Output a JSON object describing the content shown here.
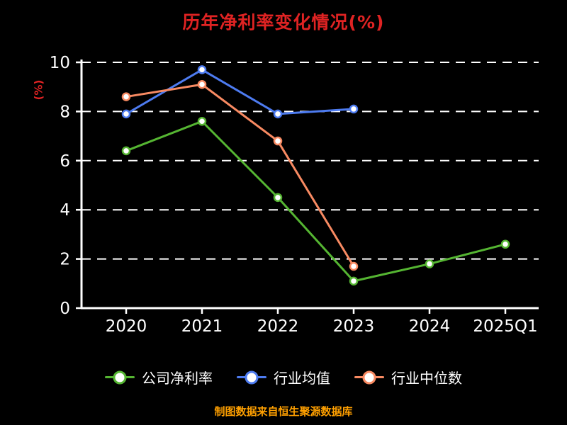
{
  "chart_data": {
    "type": "line",
    "title": "历年净利率变化情况(%)",
    "ylabel": "(%)",
    "footer": "制图数据来自恒生聚源数据库",
    "categories": [
      "2020",
      "2021",
      "2022",
      "2023",
      "2024",
      "2025Q1"
    ],
    "series": [
      {
        "name": "公司净利率",
        "color": "#55b532",
        "values": [
          6.4,
          7.6,
          4.5,
          1.1,
          1.8,
          2.6
        ]
      },
      {
        "name": "行业均值",
        "color": "#4d7bf0",
        "values": [
          7.9,
          9.7,
          7.9,
          8.1,
          null,
          null
        ]
      },
      {
        "name": "行业中位数",
        "color": "#f88a62",
        "values": [
          8.6,
          9.1,
          6.8,
          1.7,
          null,
          null
        ]
      }
    ],
    "ylim": [
      0,
      10
    ],
    "yticks": [
      0,
      2,
      4,
      6,
      8,
      10
    ],
    "grid": true,
    "grid_style": "dashed",
    "legend_position": "bottom",
    "colors": {
      "background": "#000000",
      "axis": "#ffffff",
      "tick_labels": "#ffffff",
      "title": "#e02323",
      "footer": "#ffa000",
      "marker_fill": "#ffffff"
    }
  }
}
